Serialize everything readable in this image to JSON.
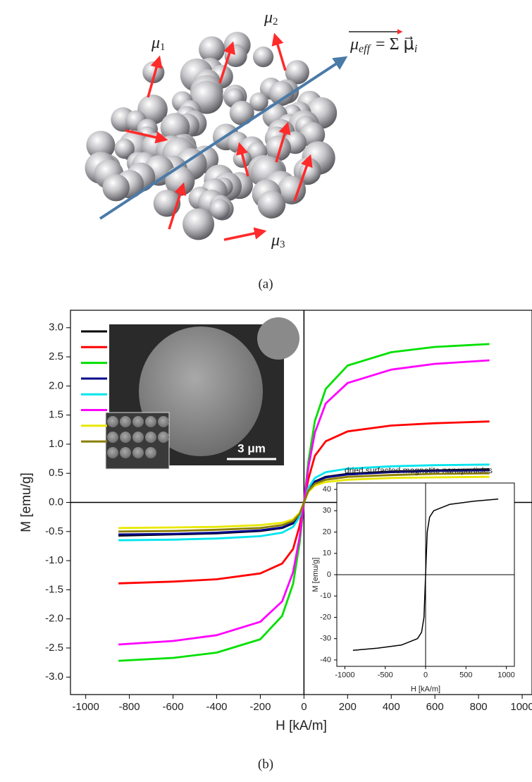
{
  "figure_a": {
    "labels": [
      {
        "symbol": "μ",
        "index": "1"
      },
      {
        "symbol": "μ",
        "index": "2"
      },
      {
        "symbol": "μ",
        "index": "3"
      }
    ],
    "formula": {
      "lhs": "μ",
      "lhs_sub": "eff",
      "rhs": "= Σ μ⃗",
      "rhs_sub": "i"
    },
    "caption": "(a)"
  },
  "micrograph": {
    "scale_bar": "3 μm"
  },
  "caption_b": "(b)",
  "chart_data": [
    {
      "type": "line",
      "xlabel": "H [kA/m]",
      "ylabel": "M [emu/g]",
      "x": [
        -850,
        -600,
        -400,
        -200,
        -100,
        -50,
        -20,
        0,
        20,
        50,
        100,
        200,
        400,
        600,
        850
      ],
      "series": [
        {
          "color": "#000000",
          "values": [
            -0.57,
            -0.55,
            -0.53,
            -0.49,
            -0.44,
            -0.36,
            -0.22,
            0,
            0.22,
            0.36,
            0.44,
            0.49,
            0.53,
            0.55,
            0.57
          ]
        },
        {
          "color": "#ff0000",
          "values": [
            -1.39,
            -1.36,
            -1.32,
            -1.22,
            -1.05,
            -0.8,
            -0.4,
            0,
            0.4,
            0.8,
            1.05,
            1.22,
            1.32,
            1.36,
            1.39
          ]
        },
        {
          "color": "#00e000",
          "values": [
            -2.72,
            -2.67,
            -2.58,
            -2.35,
            -1.95,
            -1.4,
            -0.7,
            0,
            0.7,
            1.4,
            1.95,
            2.35,
            2.58,
            2.67,
            2.72
          ]
        },
        {
          "color": "#00008b",
          "values": [
            -0.55,
            -0.54,
            -0.52,
            -0.48,
            -0.43,
            -0.35,
            -0.21,
            0,
            0.21,
            0.35,
            0.43,
            0.48,
            0.52,
            0.54,
            0.55
          ]
        },
        {
          "color": "#00e5ee",
          "values": [
            -0.65,
            -0.64,
            -0.62,
            -0.58,
            -0.52,
            -0.42,
            -0.25,
            0,
            0.25,
            0.42,
            0.52,
            0.58,
            0.62,
            0.64,
            0.65
          ]
        },
        {
          "color": "#ff00ff",
          "values": [
            -2.44,
            -2.38,
            -2.28,
            -2.05,
            -1.7,
            -1.2,
            -0.6,
            0,
            0.6,
            1.2,
            1.7,
            2.05,
            2.28,
            2.38,
            2.44
          ]
        },
        {
          "color": "#e8e800",
          "values": [
            -0.44,
            -0.43,
            -0.42,
            -0.39,
            -0.35,
            -0.29,
            -0.18,
            0,
            0.18,
            0.29,
            0.35,
            0.39,
            0.42,
            0.43,
            0.44
          ]
        },
        {
          "color": "#8b7d00",
          "values": [
            -0.5,
            -0.49,
            -0.47,
            -0.44,
            -0.39,
            -0.32,
            -0.2,
            0,
            0.2,
            0.32,
            0.39,
            0.44,
            0.47,
            0.49,
            0.5
          ]
        }
      ],
      "xlim": [
        -1070,
        1045
      ],
      "ylim": [
        -3.3,
        3.3
      ],
      "xticks": [
        -1000,
        -800,
        -600,
        -400,
        -200,
        0,
        200,
        400,
        600,
        800,
        1000
      ],
      "yticks": [
        {
          "value": -3,
          "label": "-3.0"
        },
        -2.5,
        {
          "value": -2,
          "label": "-2.0"
        },
        -1.5,
        {
          "value": -1,
          "label": "-1.0"
        },
        -0.5,
        {
          "value": 0,
          "label": "0.0"
        },
        0.5,
        {
          "value": 1,
          "label": "1.0"
        },
        1.5,
        {
          "value": 2,
          "label": "2.0"
        },
        2.5,
        {
          "value": 3,
          "label": "3.0"
        }
      ]
    },
    {
      "type": "line",
      "title": "dried surfacted magnetite nanoparticles",
      "xlabel": "H [kA/m]",
      "ylabel": "M [emu/g]",
      "x": [
        -900,
        -600,
        -300,
        -100,
        -50,
        -20,
        0,
        20,
        50,
        100,
        300,
        600,
        900
      ],
      "series": [
        {
          "color": "#000000",
          "values": [
            -35.5,
            -34.5,
            -33,
            -30,
            -27,
            -20,
            0,
            20,
            27,
            30,
            33,
            34.5,
            35.5
          ]
        }
      ],
      "xlim": [
        -1100,
        1100
      ],
      "ylim": [
        -43,
        43
      ],
      "xticks": [
        -1000,
        -500,
        0,
        500,
        1000
      ],
      "yticks": [
        -40,
        -30,
        -20,
        -10,
        0,
        10,
        20,
        30,
        40
      ]
    }
  ]
}
